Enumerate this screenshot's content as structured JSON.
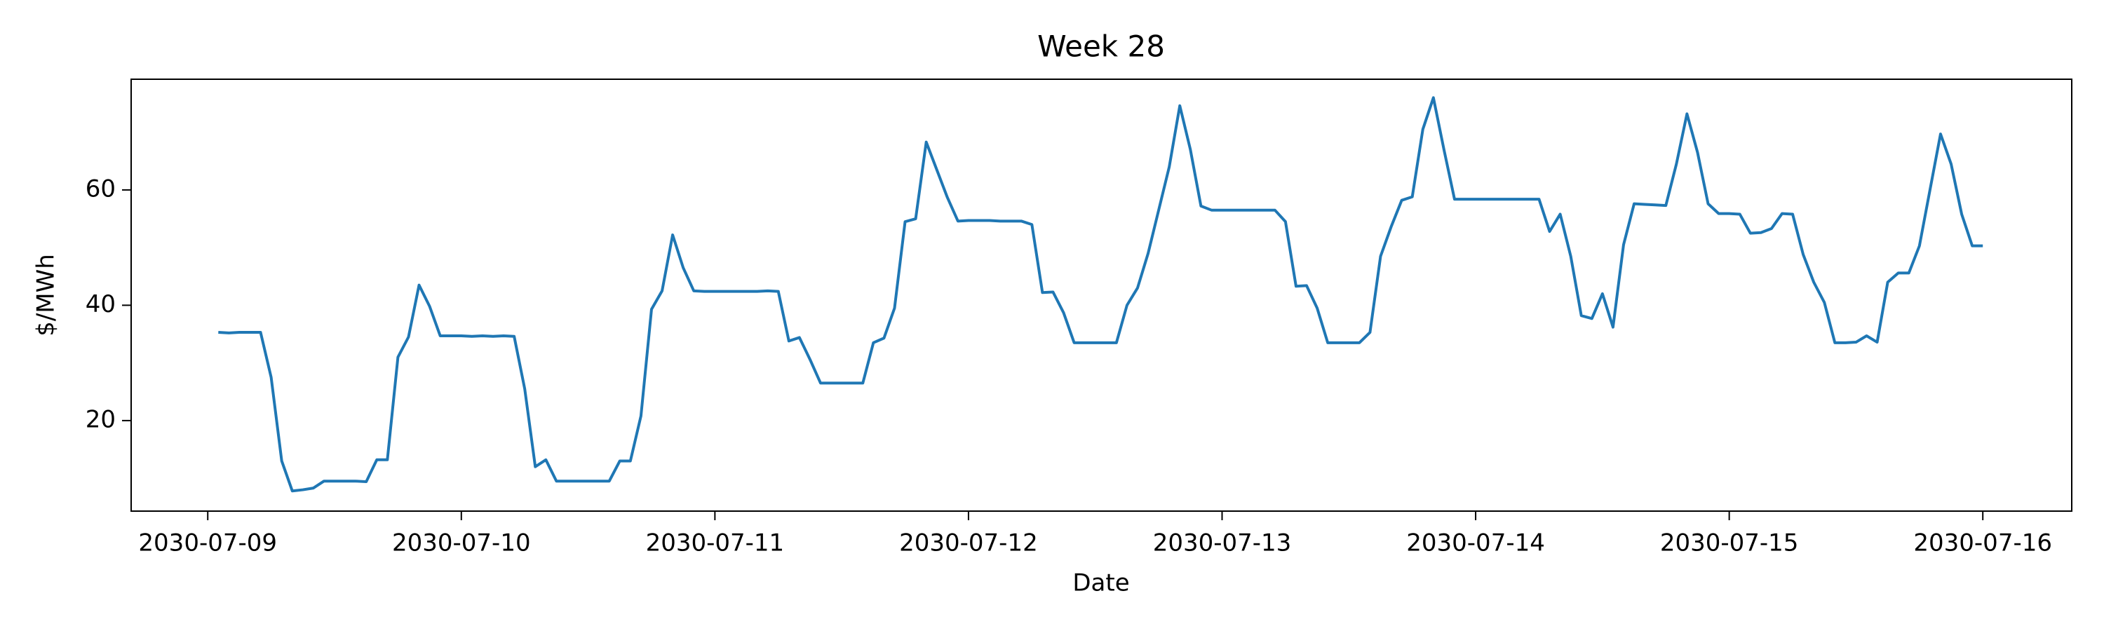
{
  "chart_data": {
    "type": "line",
    "title": "Week 28",
    "xlabel": "Date",
    "ylabel": "$/MWh",
    "color": "#1f77b4",
    "grid": false,
    "x": [
      "2030-07-09 01:00",
      "2030-07-09 02:00",
      "2030-07-09 03:00",
      "2030-07-09 04:00",
      "2030-07-09 05:00",
      "2030-07-09 06:00",
      "2030-07-09 07:00",
      "2030-07-09 08:00",
      "2030-07-09 09:00",
      "2030-07-09 10:00",
      "2030-07-09 11:00",
      "2030-07-09 12:00",
      "2030-07-09 13:00",
      "2030-07-09 14:00",
      "2030-07-09 15:00",
      "2030-07-09 16:00",
      "2030-07-09 17:00",
      "2030-07-09 18:00",
      "2030-07-09 19:00",
      "2030-07-09 20:00",
      "2030-07-09 21:00",
      "2030-07-09 22:00",
      "2030-07-09 23:00",
      "2030-07-10 00:00",
      "2030-07-10 01:00",
      "2030-07-10 02:00",
      "2030-07-10 03:00",
      "2030-07-10 04:00",
      "2030-07-10 05:00",
      "2030-07-10 06:00",
      "2030-07-10 07:00",
      "2030-07-10 08:00",
      "2030-07-10 09:00",
      "2030-07-10 10:00",
      "2030-07-10 11:00",
      "2030-07-10 12:00",
      "2030-07-10 13:00",
      "2030-07-10 14:00",
      "2030-07-10 15:00",
      "2030-07-10 16:00",
      "2030-07-10 17:00",
      "2030-07-10 18:00",
      "2030-07-10 19:00",
      "2030-07-10 20:00",
      "2030-07-10 21:00",
      "2030-07-10 22:00",
      "2030-07-10 23:00",
      "2030-07-11 00:00",
      "2030-07-11 01:00",
      "2030-07-11 02:00",
      "2030-07-11 03:00",
      "2030-07-11 04:00",
      "2030-07-11 05:00",
      "2030-07-11 06:00",
      "2030-07-11 07:00",
      "2030-07-11 08:00",
      "2030-07-11 09:00",
      "2030-07-11 10:00",
      "2030-07-11 11:00",
      "2030-07-11 12:00",
      "2030-07-11 13:00",
      "2030-07-11 14:00",
      "2030-07-11 15:00",
      "2030-07-11 16:00",
      "2030-07-11 17:00",
      "2030-07-11 18:00",
      "2030-07-11 19:00",
      "2030-07-11 20:00",
      "2030-07-11 21:00",
      "2030-07-11 22:00",
      "2030-07-11 23:00",
      "2030-07-12 00:00",
      "2030-07-12 01:00",
      "2030-07-12 02:00",
      "2030-07-12 03:00",
      "2030-07-12 04:00",
      "2030-07-12 05:00",
      "2030-07-12 06:00",
      "2030-07-12 07:00",
      "2030-07-12 08:00",
      "2030-07-12 09:00",
      "2030-07-12 10:00",
      "2030-07-12 11:00",
      "2030-07-12 12:00",
      "2030-07-12 13:00",
      "2030-07-12 14:00",
      "2030-07-12 15:00",
      "2030-07-12 16:00",
      "2030-07-12 17:00",
      "2030-07-12 18:00",
      "2030-07-12 19:00",
      "2030-07-12 20:00",
      "2030-07-12 21:00",
      "2030-07-12 22:00",
      "2030-07-12 23:00",
      "2030-07-13 00:00",
      "2030-07-13 01:00",
      "2030-07-13 02:00",
      "2030-07-13 03:00",
      "2030-07-13 04:00",
      "2030-07-13 05:00",
      "2030-07-13 06:00",
      "2030-07-13 07:00",
      "2030-07-13 08:00",
      "2030-07-13 09:00",
      "2030-07-13 10:00",
      "2030-07-13 11:00",
      "2030-07-13 12:00",
      "2030-07-13 13:00",
      "2030-07-13 14:00",
      "2030-07-13 15:00",
      "2030-07-13 16:00",
      "2030-07-13 17:00",
      "2030-07-13 18:00",
      "2030-07-13 19:00",
      "2030-07-13 20:00",
      "2030-07-13 21:00",
      "2030-07-13 22:00",
      "2030-07-13 23:00",
      "2030-07-14 00:00",
      "2030-07-14 01:00",
      "2030-07-14 02:00",
      "2030-07-14 03:00",
      "2030-07-14 04:00",
      "2030-07-14 05:00",
      "2030-07-14 06:00",
      "2030-07-14 07:00",
      "2030-07-14 08:00",
      "2030-07-14 09:00",
      "2030-07-14 10:00",
      "2030-07-14 11:00",
      "2030-07-14 12:00",
      "2030-07-14 13:00",
      "2030-07-14 14:00",
      "2030-07-14 15:00",
      "2030-07-14 16:00",
      "2030-07-14 17:00",
      "2030-07-14 18:00",
      "2030-07-14 19:00",
      "2030-07-14 20:00",
      "2030-07-14 21:00",
      "2030-07-14 22:00",
      "2030-07-14 23:00",
      "2030-07-15 00:00",
      "2030-07-15 01:00",
      "2030-07-15 02:00",
      "2030-07-15 03:00",
      "2030-07-15 04:00",
      "2030-07-15 05:00",
      "2030-07-15 06:00",
      "2030-07-15 07:00",
      "2030-07-15 08:00",
      "2030-07-15 09:00",
      "2030-07-15 10:00",
      "2030-07-15 11:00",
      "2030-07-15 12:00",
      "2030-07-15 13:00",
      "2030-07-15 14:00",
      "2030-07-15 15:00",
      "2030-07-15 16:00",
      "2030-07-15 17:00",
      "2030-07-15 18:00",
      "2030-07-15 19:00",
      "2030-07-15 20:00",
      "2030-07-15 21:00",
      "2030-07-15 22:00",
      "2030-07-15 23:00",
      "2030-07-16 00:00"
    ],
    "values": [
      35.3,
      35.2,
      35.3,
      35.3,
      35.3,
      27.5,
      13,
      7.8,
      8,
      8.3,
      9.5,
      9.5,
      9.5,
      9.5,
      9.4,
      13.2,
      13.2,
      31,
      34.5,
      43.5,
      39.8,
      34.7,
      34.7,
      34.7,
      34.6,
      34.7,
      34.6,
      34.7,
      34.6,
      25.5,
      12,
      13.2,
      9.5,
      9.5,
      9.5,
      9.5,
      9.5,
      9.5,
      13,
      13,
      20.8,
      39.3,
      42.5,
      52.2,
      46.5,
      42.5,
      42.4,
      42.4,
      42.4,
      42.4,
      42.4,
      42.4,
      42.5,
      42.4,
      33.8,
      34.4,
      30.6,
      26.5,
      26.5,
      26.5,
      26.5,
      26.5,
      33.5,
      34.3,
      39.5,
      54.5,
      55,
      68.3,
      63.5,
      58.7,
      54.6,
      54.7,
      54.7,
      54.7,
      54.6,
      54.6,
      54.6,
      54,
      42.2,
      42.3,
      38.7,
      33.5,
      33.5,
      33.5,
      33.5,
      33.5,
      40,
      43,
      49,
      56.5,
      64,
      74.6,
      67,
      57.2,
      56.5,
      56.5,
      56.5,
      56.5,
      56.5,
      56.5,
      56.5,
      54.5,
      43.3,
      43.4,
      39.5,
      33.5,
      33.5,
      33.5,
      33.5,
      35.3,
      48.5,
      53.6,
      58.2,
      58.8,
      70.5,
      76,
      67,
      58.4,
      58.4,
      58.4,
      58.4,
      58.4,
      58.4,
      58.4,
      58.4,
      58.4,
      52.8,
      55.8,
      48.5,
      38.2,
      37.7,
      42,
      36.2,
      50.5,
      57.6,
      57.5,
      57.4,
      57.3,
      64.5,
      73.2,
      66.5,
      57.6,
      55.9,
      55.9,
      55.8,
      52.5,
      52.6,
      53.3,
      55.9,
      55.8,
      48.8,
      44,
      40.5,
      33.5,
      33.5,
      33.6,
      34.7,
      33.6,
      44,
      45.6,
      45.6,
      50.3,
      60,
      69.7,
      64.5,
      55.8,
      50.3,
      50.3
    ],
    "xlim": [
      "2030-07-08 16:45",
      "2030-07-16 08:25"
    ],
    "xticks": [
      "2030-07-09",
      "2030-07-10",
      "2030-07-11",
      "2030-07-12",
      "2030-07-13",
      "2030-07-14",
      "2030-07-15",
      "2030-07-16"
    ],
    "ylim": [
      4.3,
      79.2
    ],
    "yticks": [
      20,
      40,
      60
    ]
  }
}
